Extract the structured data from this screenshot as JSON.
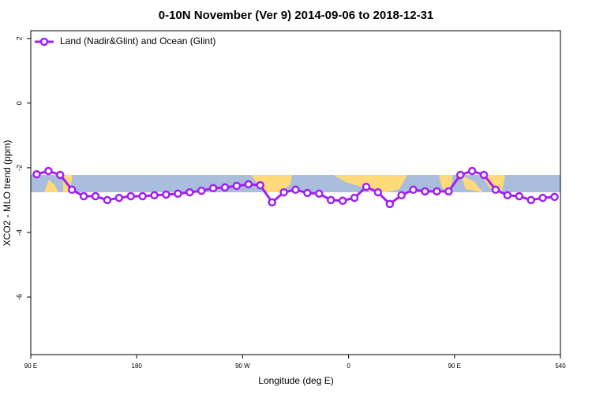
{
  "chart_data": {
    "type": "line",
    "title": "0-10N November (Ver 9)   2014-09-06 to 2018-12-31",
    "x_label": "Longitude (deg E)",
    "y_label": "XCO2 - MLO trend (ppm)",
    "x": [
      95,
      105,
      115,
      125,
      135,
      145,
      155,
      165,
      175,
      185,
      195,
      205,
      215,
      225,
      235,
      245,
      255,
      265,
      275,
      285,
      295,
      305,
      315,
      325,
      335,
      345,
      355,
      365,
      375,
      385,
      395,
      405,
      415,
      425,
      435,
      445,
      455,
      465,
      475,
      485,
      495,
      505,
      515,
      525,
      535
    ],
    "series": [
      {
        "name": "Land (Nadir&Glint) and Ocean (Glint)",
        "color": "#a020f0",
        "values": [
          -2.2,
          -2.1,
          -2.22,
          -2.68,
          -2.88,
          -2.88,
          -3.0,
          -2.93,
          -2.88,
          -2.88,
          -2.85,
          -2.83,
          -2.8,
          -2.76,
          -2.71,
          -2.63,
          -2.61,
          -2.56,
          -2.51,
          -2.54,
          -3.07,
          -2.76,
          -2.68,
          -2.78,
          -2.8,
          -3.0,
          -3.02,
          -2.93,
          -2.59,
          -2.76,
          -3.12,
          -2.85,
          -2.68,
          -2.73,
          -2.73,
          -2.73,
          -2.22,
          -2.1,
          -2.22,
          -2.68,
          -2.85,
          -2.88,
          -3.0,
          -2.93,
          -2.9
        ]
      }
    ],
    "xlim": [
      90,
      540
    ],
    "xticks": [
      {
        "value": 90,
        "label": "90 E"
      },
      180,
      {
        "value": 270,
        "label": "90 W"
      },
      {
        "value": 360,
        "label": "0"
      },
      {
        "value": 450,
        "label": "90 E"
      },
      540
    ],
    "ylim": [
      -7.78,
      2.24
    ],
    "yticks": [
      2,
      0,
      -2,
      -4,
      -6
    ],
    "legend": "top-left"
  }
}
